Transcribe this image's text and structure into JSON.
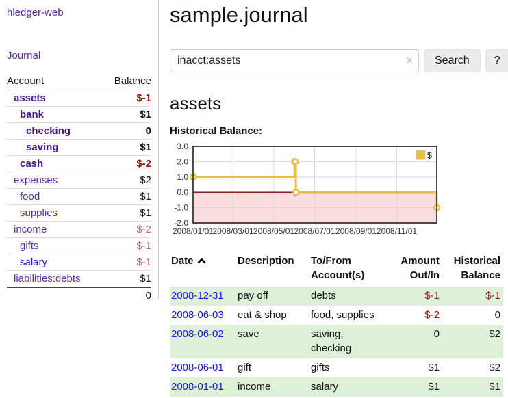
{
  "sidebar": {
    "app_title": "hledger-web",
    "journal_link": "Journal",
    "accounts_table": {
      "headers": [
        "Account",
        "Balance"
      ],
      "rows": [
        {
          "account": "assets",
          "balance": "$-1",
          "indent": 0,
          "bold": true,
          "balance_class": "neg-strong",
          "link_class": ""
        },
        {
          "account": "bank",
          "balance": "$1",
          "indent": 1,
          "bold": true,
          "balance_class": "",
          "link_class": ""
        },
        {
          "account": "checking",
          "balance": "0",
          "indent": 2,
          "bold": true,
          "balance_class": "",
          "link_class": ""
        },
        {
          "account": "saving",
          "balance": "$1",
          "indent": 2,
          "bold": true,
          "balance_class": "",
          "link_class": ""
        },
        {
          "account": "cash",
          "balance": "$-2",
          "indent": 1,
          "bold": true,
          "balance_class": "neg-strong",
          "link_class": ""
        },
        {
          "account": "expenses",
          "balance": "$2",
          "indent": 0,
          "bold": false,
          "balance_class": "",
          "link_class": ""
        },
        {
          "account": "food",
          "balance": "$1",
          "indent": 1,
          "bold": false,
          "balance_class": "",
          "link_class": ""
        },
        {
          "account": "supplies",
          "balance": "$1",
          "indent": 1,
          "bold": false,
          "balance_class": "",
          "link_class": ""
        },
        {
          "account": "income",
          "balance": "$-2",
          "indent": 0,
          "bold": false,
          "balance_class": "neg-muted",
          "link_class": ""
        },
        {
          "account": "gifts",
          "balance": "$-1",
          "indent": 1,
          "bold": false,
          "balance_class": "neg-muted",
          "link_class": ""
        },
        {
          "account": "salary",
          "balance": "$-1",
          "indent": 1,
          "bold": false,
          "balance_class": "neg-muted",
          "link_class": "blue"
        },
        {
          "account": "liabilities:debts",
          "balance": "$1",
          "indent": 0,
          "bold": false,
          "balance_class": "",
          "link_class": ""
        }
      ],
      "total": "0"
    }
  },
  "main": {
    "title": "sample.journal",
    "search": {
      "value": "inacct:assets",
      "clear_icon": "×",
      "button_label": "Search",
      "help_label": "?"
    },
    "section_title": "assets",
    "chart_label": "Historical Balance:",
    "transactions": {
      "headers": [
        "Date",
        "Description",
        "To/From Account(s)",
        "Amount Out/In",
        "Historical Balance"
      ],
      "rows": [
        {
          "date": "2008-12-31",
          "description": "pay off",
          "accounts": "debts",
          "amount": "$-1",
          "balance": "$-1",
          "amount_class": "neg",
          "balance_class": "neg"
        },
        {
          "date": "2008-06-03",
          "description": "eat & shop",
          "accounts": "food, supplies",
          "amount": "$-2",
          "balance": "0",
          "amount_class": "neg",
          "balance_class": ""
        },
        {
          "date": "2008-06-02",
          "description": "save",
          "accounts": "saving, checking",
          "amount": "0",
          "balance": "$2",
          "amount_class": "",
          "balance_class": ""
        },
        {
          "date": "2008-06-01",
          "description": "gift",
          "accounts": "gifts",
          "amount": "$1",
          "balance": "$2",
          "amount_class": "",
          "balance_class": ""
        },
        {
          "date": "2008-01-01",
          "description": "income",
          "accounts": "salary",
          "amount": "$1",
          "balance": "$1",
          "amount_class": "",
          "balance_class": ""
        }
      ]
    }
  },
  "chart_data": {
    "type": "line",
    "title": "Historical Balance:",
    "step": true,
    "legend": "$",
    "legend_position": "top-right",
    "grid": true,
    "ylim": [
      -2,
      3
    ],
    "y_ticks": [
      3.0,
      2.0,
      1.0,
      0.0,
      -1.0,
      -2.0
    ],
    "x_domain_days": [
      0,
      365
    ],
    "x_ticks": [
      {
        "day": 0,
        "label": "2008/01/01"
      },
      {
        "day": 60,
        "label": "2008/03/01"
      },
      {
        "day": 121,
        "label": "2008/05/01"
      },
      {
        "day": 182,
        "label": "2008/07/01"
      },
      {
        "day": 244,
        "label": "2008/09/01"
      },
      {
        "day": 305,
        "label": "2008/11/01"
      }
    ],
    "series": [
      {
        "name": "$",
        "color": "#e9c043",
        "points": [
          {
            "date": "2008-01-01",
            "x": 0,
            "y": 1
          },
          {
            "date": "2008-06-01",
            "x": 152,
            "y": 2
          },
          {
            "date": "2008-06-02",
            "x": 153,
            "y": 2
          },
          {
            "date": "2008-06-03",
            "x": 154,
            "y": 0
          },
          {
            "date": "2008-12-31",
            "x": 365,
            "y": -1
          }
        ]
      }
    ],
    "colors": {
      "negative_region": "#fbdde0",
      "zero_line": "#8b0000",
      "gridline": "#d9d9d9",
      "plot_border": "#4a4a4a",
      "tick_text": "#333333"
    }
  }
}
